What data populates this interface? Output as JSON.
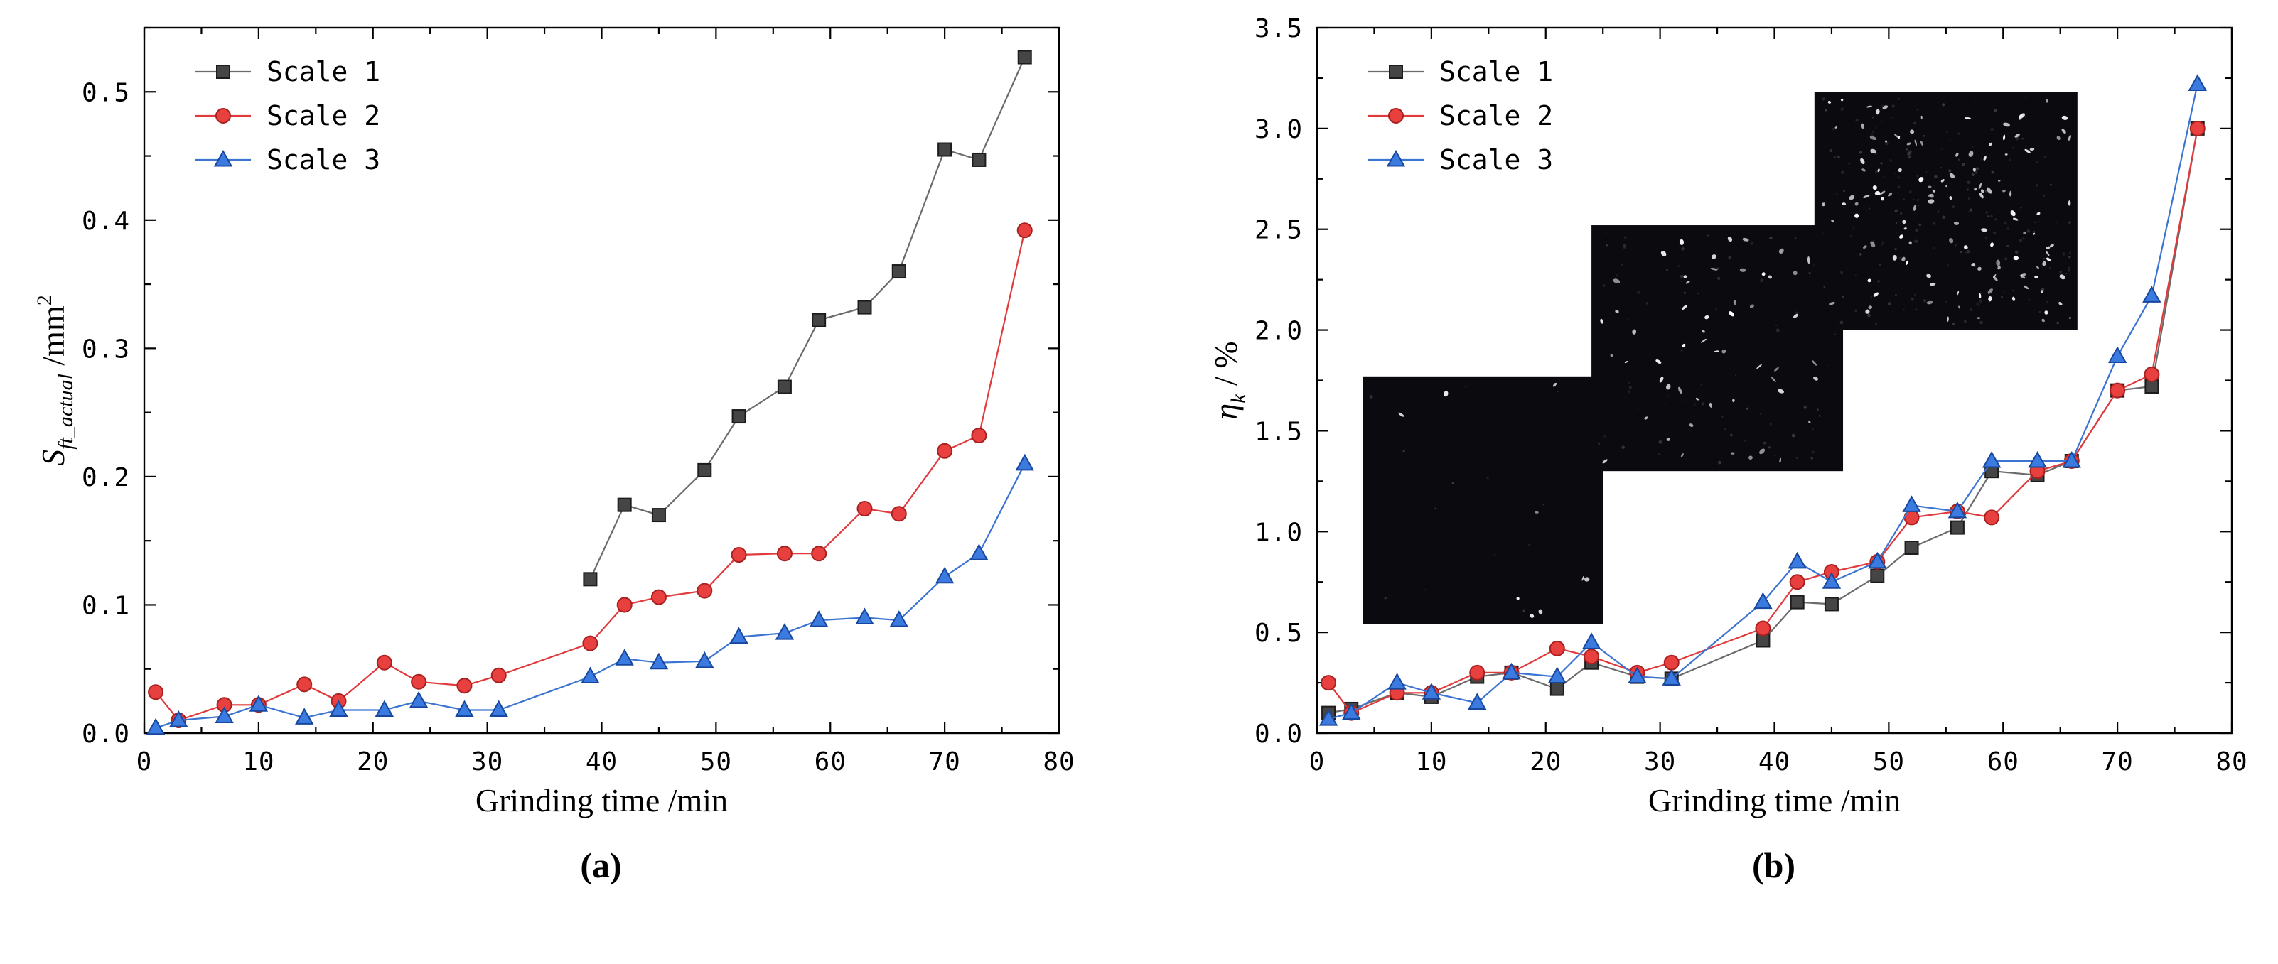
{
  "captions": [
    "(a)",
    "(b)"
  ],
  "chart_data": [
    {
      "type": "line",
      "title": "",
      "xlabel": "Grinding time /min",
      "ylabel_parts": {
        "sym": "S",
        "sub": "ft_actual",
        "unit": " /mm",
        "sup": "2"
      },
      "xlim": [
        0,
        80
      ],
      "ylim": [
        0,
        0.55
      ],
      "xticks": [
        0,
        10,
        20,
        30,
        40,
        50,
        60,
        70,
        80
      ],
      "xtick_labels": [
        "0",
        "10",
        "20",
        "30",
        "40",
        "50",
        "60",
        "70",
        "80"
      ],
      "yticks": [
        0,
        0.1,
        0.2,
        0.3,
        0.4,
        0.5
      ],
      "ytick_labels": [
        "0.0",
        "0.1",
        "0.2",
        "0.3",
        "0.4",
        "0.5"
      ],
      "xminor": 5,
      "yminor": 0.05,
      "grid": false,
      "legend_position": "top-left",
      "x": [
        1,
        3,
        7,
        10,
        14,
        17,
        21,
        24,
        28,
        31,
        39,
        42,
        45,
        49,
        52,
        56,
        59,
        63,
        66,
        70,
        73,
        77
      ],
      "series": [
        {
          "name": "Scale 1",
          "marker": "square",
          "line": "#6b6b6b",
          "fill": "#454545",
          "edge": "#1c1c1c",
          "values": [
            null,
            null,
            null,
            null,
            null,
            null,
            null,
            null,
            null,
            null,
            0.12,
            0.178,
            0.17,
            0.205,
            0.247,
            0.27,
            0.322,
            0.332,
            0.36,
            0.455,
            0.447,
            0.527
          ]
        },
        {
          "name": "Scale 2",
          "marker": "circle",
          "line": "#e03a3c",
          "fill": "#e8403f",
          "edge": "#a8201f",
          "values": [
            0.032,
            0.01,
            0.022,
            0.022,
            0.038,
            0.025,
            0.055,
            0.04,
            0.037,
            0.045,
            0.07,
            0.1,
            0.106,
            0.111,
            0.139,
            0.14,
            0.14,
            0.175,
            0.171,
            0.22,
            0.232,
            0.392
          ]
        },
        {
          "name": "Scale 3",
          "marker": "triangle",
          "line": "#3b74d1",
          "fill": "#3b7ade",
          "edge": "#17479e",
          "values": [
            0.004,
            0.01,
            0.013,
            0.022,
            0.012,
            0.018,
            0.018,
            0.025,
            0.018,
            0.018,
            0.044,
            0.058,
            0.055,
            0.056,
            0.075,
            0.078,
            0.088,
            0.09,
            0.088,
            0.122,
            0.14,
            0.21
          ]
        }
      ]
    },
    {
      "type": "line",
      "title": "",
      "xlabel": "Grinding time /min",
      "ylabel_parts": {
        "sym": "η",
        "sub": "k",
        "unit": " / %"
      },
      "xlim": [
        0,
        80
      ],
      "ylim": [
        0,
        3.5
      ],
      "xticks": [
        0,
        10,
        20,
        30,
        40,
        50,
        60,
        70,
        80
      ],
      "xtick_labels": [
        "0",
        "10",
        "20",
        "30",
        "40",
        "50",
        "60",
        "70",
        "80"
      ],
      "yticks": [
        0,
        0.5,
        1.0,
        1.5,
        2.0,
        2.5,
        3.0,
        3.5
      ],
      "ytick_labels": [
        "0.0",
        "0.5",
        "1.0",
        "1.5",
        "2.0",
        "2.5",
        "3.0",
        "3.5"
      ],
      "xminor": 5,
      "yminor": 0.25,
      "grid": false,
      "legend_position": "top-left",
      "x": [
        1,
        3,
        7,
        10,
        14,
        17,
        21,
        24,
        28,
        31,
        39,
        42,
        45,
        49,
        52,
        56,
        59,
        63,
        66,
        70,
        73,
        77
      ],
      "series": [
        {
          "name": "Scale 1",
          "marker": "square",
          "line": "#6b6b6b",
          "fill": "#454545",
          "edge": "#1c1c1c",
          "values": [
            0.1,
            0.12,
            0.2,
            0.18,
            0.28,
            0.3,
            0.22,
            0.35,
            0.28,
            0.27,
            0.46,
            0.65,
            0.64,
            0.78,
            0.92,
            1.02,
            1.3,
            1.28,
            1.35,
            1.7,
            1.72,
            3.0
          ]
        },
        {
          "name": "Scale 2",
          "marker": "circle",
          "line": "#e03a3c",
          "fill": "#e8403f",
          "edge": "#a8201f",
          "values": [
            0.25,
            0.1,
            0.2,
            0.2,
            0.3,
            0.3,
            0.42,
            0.38,
            0.3,
            0.35,
            0.52,
            0.75,
            0.8,
            0.85,
            1.07,
            1.1,
            1.07,
            1.3,
            1.35,
            1.7,
            1.78,
            3.0
          ]
        },
        {
          "name": "Scale 3",
          "marker": "triangle",
          "line": "#3b74d1",
          "fill": "#3b7ade",
          "edge": "#17479e",
          "values": [
            0.07,
            0.1,
            0.25,
            0.2,
            0.15,
            0.3,
            0.28,
            0.45,
            0.28,
            0.27,
            0.65,
            0.85,
            0.75,
            0.85,
            1.13,
            1.1,
            1.35,
            1.35,
            1.35,
            1.87,
            2.17,
            3.22
          ]
        }
      ],
      "insets": [
        {
          "x0": 4,
          "x1": 25,
          "y0": 0.54,
          "y1": 1.77,
          "dots": 9,
          "seed": 7,
          "bg": "#0b0b0f"
        },
        {
          "x0": 24,
          "x1": 46,
          "y0": 1.3,
          "y1": 2.52,
          "dots": 55,
          "seed": 13,
          "bg": "#0b0b0f"
        },
        {
          "x0": 43.5,
          "x1": 66.5,
          "y0": 2.0,
          "y1": 3.18,
          "dots": 130,
          "seed": 29,
          "bg": "#0b0b0f"
        }
      ]
    }
  ]
}
